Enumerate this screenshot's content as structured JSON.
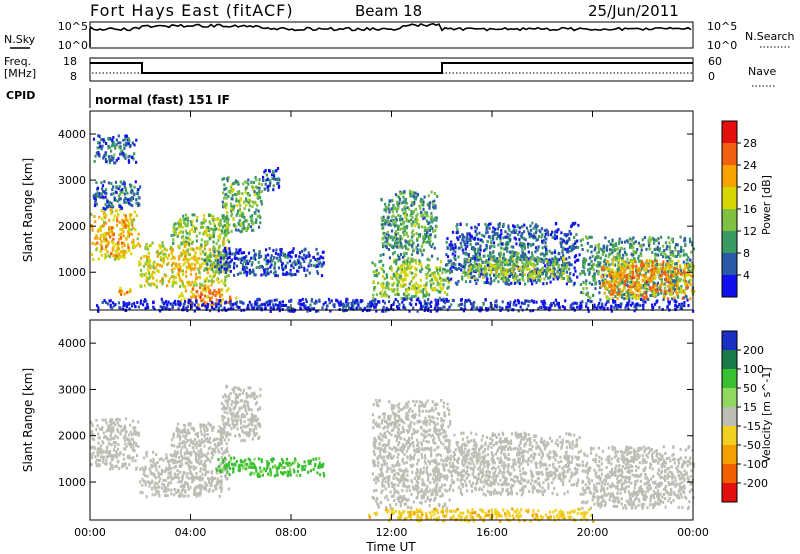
{
  "header": {
    "station": "Fort Hays East (fitACF)",
    "beam": "Beam 18",
    "date": "25/Jun/2011"
  },
  "status_panels": {
    "nsky_label": "N.Sky",
    "nsky_ticks": [
      "10^5",
      "10^0"
    ],
    "nsearch_label": "N.Search",
    "nsearch_ticks": [
      "10^5",
      "10^0"
    ],
    "freq_label": "Freq.",
    "freq_unit": "[MHz]",
    "freq_ticks": [
      "18",
      "8"
    ],
    "nave_label": "Nave",
    "nave_ticks": [
      "60",
      "0"
    ],
    "cpid_label": "CPID",
    "cpid_text": "normal (fast) 151 IF"
  },
  "chart_data": [
    {
      "type": "heatmap",
      "name": "power",
      "ylabel": "Slant Range [km]",
      "xlabel": "Time UT",
      "xlim": [
        0,
        24
      ],
      "ylim": [
        180,
        4500
      ],
      "x_ticks": [
        "00:00",
        "04:00",
        "08:00",
        "12:00",
        "16:00",
        "20:00",
        "00:00"
      ],
      "y_ticks": [
        "1000",
        "2000",
        "3000",
        "4000"
      ],
      "colorbar_label": "Power [dB]",
      "colorbar_ticks": [
        "28",
        "24",
        "20",
        "16",
        "12",
        "8",
        "4"
      ],
      "colorbar_colors": [
        "#e41010",
        "#f06010",
        "#f6a200",
        "#d6d600",
        "#7fc040",
        "#3a9a64",
        "#2a5aa6",
        "#1010ee"
      ],
      "regions": [
        {
          "t": [
            0.0,
            1.9
          ],
          "r": [
            1300,
            2400
          ],
          "level": 24
        },
        {
          "t": [
            0.1,
            2.0
          ],
          "r": [
            2400,
            3000
          ],
          "level": 10
        },
        {
          "t": [
            0.1,
            1.8
          ],
          "r": [
            3400,
            4000
          ],
          "level": 10
        },
        {
          "t": [
            1.0,
            1.6
          ],
          "r": [
            550,
            700
          ],
          "level": 26
        },
        {
          "t": [
            1.9,
            5.5
          ],
          "r": [
            700,
            1700
          ],
          "level": 22
        },
        {
          "t": [
            3.2,
            5.5
          ],
          "r": [
            1600,
            2300
          ],
          "level": 18
        },
        {
          "t": [
            4.5,
            5.5
          ],
          "r": [
            1000,
            1500
          ],
          "level": 14
        },
        {
          "t": [
            3.5,
            5.8
          ],
          "r": [
            300,
            700
          ],
          "level": 26
        },
        {
          "t": [
            5.2,
            6.8
          ],
          "r": [
            1900,
            3100
          ],
          "level": 16
        },
        {
          "t": [
            5.0,
            9.3
          ],
          "r": [
            950,
            1550
          ],
          "level": 8
        },
        {
          "t": [
            6.8,
            7.5
          ],
          "r": [
            2800,
            3300
          ],
          "level": 8
        },
        {
          "t": [
            11.5,
            13.8
          ],
          "r": [
            1300,
            2800
          ],
          "level": 14
        },
        {
          "t": [
            11.2,
            14.3
          ],
          "r": [
            450,
            1300
          ],
          "level": 18
        },
        {
          "t": [
            14.1,
            19.5
          ],
          "r": [
            750,
            2100
          ],
          "level": 10
        },
        {
          "t": [
            14.8,
            19.0
          ],
          "r": [
            850,
            1350
          ],
          "level": 18
        },
        {
          "t": [
            19.5,
            24.0
          ],
          "r": [
            450,
            1800
          ],
          "level": 14
        },
        {
          "t": [
            20.3,
            24.0
          ],
          "r": [
            450,
            1300
          ],
          "level": 26
        },
        {
          "t": [
            0.0,
            24.0
          ],
          "r": [
            180,
            450
          ],
          "level": 6
        }
      ]
    },
    {
      "type": "heatmap",
      "name": "velocity",
      "ylabel": "Slant Range [km]",
      "xlabel": "Time UT",
      "xlim": [
        0,
        24
      ],
      "ylim": [
        180,
        4500
      ],
      "x_ticks": [
        "00:00",
        "04:00",
        "08:00",
        "12:00",
        "16:00",
        "20:00",
        "00:00"
      ],
      "y_ticks": [
        "1000",
        "2000",
        "3000",
        "4000"
      ],
      "colorbar_label": "Velocity [m s^-1]",
      "colorbar_ticks": [
        "200",
        "100",
        "50",
        "15",
        "-15",
        "-50",
        "-100",
        "-200"
      ],
      "colorbar_colors": [
        "#1a30c0",
        "#1a7a4a",
        "#39c030",
        "#90d860",
        "#bdbdb4",
        "#f0d020",
        "#f5a000",
        "#f06000",
        "#e41010"
      ],
      "regions": [
        {
          "t": [
            0.0,
            1.9
          ],
          "r": [
            1300,
            2400
          ],
          "v": 0
        },
        {
          "t": [
            1.9,
            5.5
          ],
          "r": [
            700,
            1700
          ],
          "v": 0
        },
        {
          "t": [
            3.2,
            5.5
          ],
          "r": [
            1600,
            2300
          ],
          "v": 0
        },
        {
          "t": [
            5.2,
            6.8
          ],
          "r": [
            1900,
            3100
          ],
          "v": 0
        },
        {
          "t": [
            5.0,
            9.3
          ],
          "r": [
            1150,
            1550
          ],
          "v": 60
        },
        {
          "t": [
            11.2,
            14.3
          ],
          "r": [
            450,
            2800
          ],
          "v": 0
        },
        {
          "t": [
            14.1,
            19.5
          ],
          "r": [
            750,
            2100
          ],
          "v": 0
        },
        {
          "t": [
            19.5,
            24.0
          ],
          "r": [
            450,
            1800
          ],
          "v": 0
        },
        {
          "t": [
            11.0,
            20.0
          ],
          "r": [
            180,
            450
          ],
          "v": -40
        }
      ]
    }
  ]
}
